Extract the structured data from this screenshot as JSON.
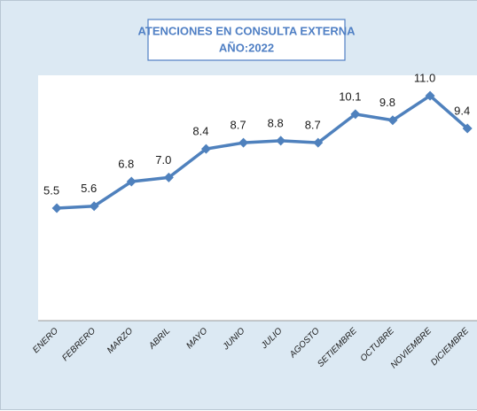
{
  "chart_data": {
    "type": "line",
    "title": "ATENCIONES EN CONSULTA EXTERNA",
    "subtitle": "AÑO:2022",
    "categories": [
      "ENERO",
      "FEBRERO",
      "MARZO",
      "ABRIL",
      "MAYO",
      "JUNIO",
      "JULIO",
      "AGOSTO",
      "SETIEMBRE",
      "OCTUBRE",
      "NOVIEMBRE",
      "DICIEMBRE"
    ],
    "values": [
      5.5,
      5.6,
      6.8,
      7.0,
      8.4,
      8.7,
      8.8,
      8.7,
      10.1,
      9.8,
      11.0,
      9.4
    ],
    "value_labels": [
      "5.5",
      "5.6",
      "6.8",
      "7.0",
      "8.4",
      "8.7",
      "8.8",
      "8.7",
      "10.1",
      "9.8",
      "11.0",
      "9.4"
    ],
    "color": "#4f81bd",
    "ylim": [
      0,
      12
    ]
  }
}
